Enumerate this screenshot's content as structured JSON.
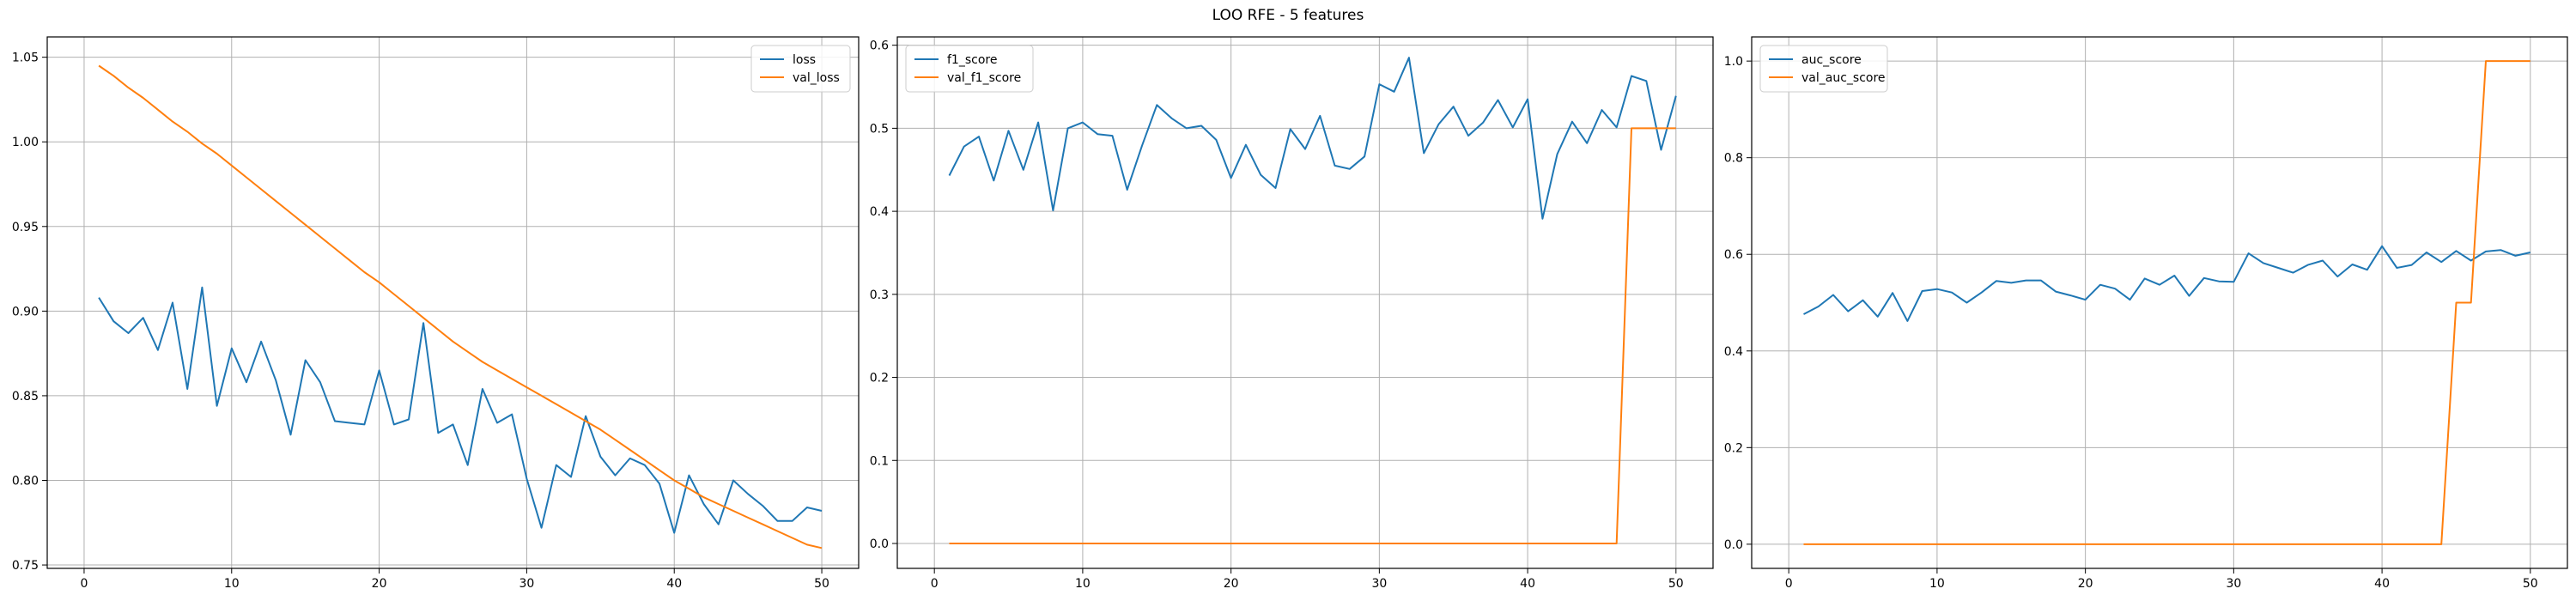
{
  "figure": {
    "title": "LOO RFE - 5 features"
  },
  "colors": {
    "blue": "#1f77b4",
    "orange": "#ff7f0e",
    "grid": "#b0b0b0",
    "axis": "#000000"
  },
  "chart_data": [
    {
      "type": "line",
      "title": "",
      "xlabel": "",
      "ylabel": "",
      "xlim": [
        -2.5,
        52.5
      ],
      "ylim": [
        0.748,
        1.062
      ],
      "xticks": [
        0,
        10,
        20,
        30,
        40,
        50
      ],
      "yticks": [
        0.75,
        0.8,
        0.85,
        0.9,
        0.95,
        1.0,
        1.05
      ],
      "ytick_labels": [
        "0.75",
        "0.80",
        "0.85",
        "0.90",
        "0.95",
        "1.00",
        "1.05"
      ],
      "grid": true,
      "legend_position": "top-right",
      "x": [
        1,
        2,
        3,
        4,
        5,
        6,
        7,
        8,
        9,
        10,
        11,
        12,
        13,
        14,
        15,
        16,
        17,
        18,
        19,
        20,
        21,
        22,
        23,
        24,
        25,
        26,
        27,
        28,
        29,
        30,
        31,
        32,
        33,
        34,
        35,
        36,
        37,
        38,
        39,
        40,
        41,
        42,
        43,
        44,
        45,
        46,
        47,
        48,
        49,
        50
      ],
      "series": [
        {
          "name": "loss",
          "color": "#1f77b4",
          "values": [
            0.908,
            0.894,
            0.887,
            0.896,
            0.877,
            0.905,
            0.854,
            0.914,
            0.844,
            0.878,
            0.858,
            0.882,
            0.859,
            0.827,
            0.871,
            0.858,
            0.835,
            0.834,
            0.833,
            0.865,
            0.833,
            0.836,
            0.893,
            0.828,
            0.833,
            0.809,
            0.854,
            0.834,
            0.839,
            0.801,
            0.772,
            0.809,
            0.802,
            0.838,
            0.814,
            0.803,
            0.813,
            0.809,
            0.798,
            0.769,
            0.803,
            0.786,
            0.774,
            0.8,
            0.792,
            0.785,
            0.776,
            0.776,
            0.784,
            0.782
          ]
        },
        {
          "name": "val_loss",
          "color": "#ff7f0e",
          "values": [
            1.045,
            1.039,
            1.032,
            1.026,
            1.019,
            1.012,
            1.006,
            0.999,
            0.993,
            0.986,
            0.979,
            0.972,
            0.965,
            0.958,
            0.951,
            0.944,
            0.937,
            0.93,
            0.923,
            0.917,
            0.91,
            0.903,
            0.896,
            0.889,
            0.882,
            0.876,
            0.87,
            0.865,
            0.86,
            0.855,
            0.85,
            0.845,
            0.84,
            0.835,
            0.83,
            0.824,
            0.818,
            0.812,
            0.806,
            0.8,
            0.795,
            0.79,
            0.786,
            0.782,
            0.778,
            0.774,
            0.77,
            0.766,
            0.762,
            0.76
          ]
        }
      ]
    },
    {
      "type": "line",
      "title": "",
      "xlabel": "",
      "ylabel": "",
      "xlim": [
        -2.5,
        52.5
      ],
      "ylim": [
        -0.03,
        0.61
      ],
      "xticks": [
        0,
        10,
        20,
        30,
        40,
        50
      ],
      "yticks": [
        0.0,
        0.1,
        0.2,
        0.3,
        0.4,
        0.5,
        0.6
      ],
      "ytick_labels": [
        "0.0",
        "0.1",
        "0.2",
        "0.3",
        "0.4",
        "0.5",
        "0.6"
      ],
      "grid": true,
      "legend_position": "top-left",
      "x": [
        1,
        2,
        3,
        4,
        5,
        6,
        7,
        8,
        9,
        10,
        11,
        12,
        13,
        14,
        15,
        16,
        17,
        18,
        19,
        20,
        21,
        22,
        23,
        24,
        25,
        26,
        27,
        28,
        29,
        30,
        31,
        32,
        33,
        34,
        35,
        36,
        37,
        38,
        39,
        40,
        41,
        42,
        43,
        44,
        45,
        46,
        47,
        48,
        49,
        50
      ],
      "series": [
        {
          "name": "f1_score",
          "color": "#1f77b4",
          "values": [
            0.443,
            0.478,
            0.49,
            0.437,
            0.497,
            0.45,
            0.507,
            0.401,
            0.5,
            0.507,
            0.493,
            0.491,
            0.426,
            0.479,
            0.528,
            0.512,
            0.5,
            0.503,
            0.486,
            0.44,
            0.48,
            0.444,
            0.428,
            0.499,
            0.475,
            0.515,
            0.455,
            0.451,
            0.466,
            0.553,
            0.544,
            0.585,
            0.47,
            0.505,
            0.526,
            0.491,
            0.507,
            0.534,
            0.501,
            0.535,
            0.391,
            0.469,
            0.508,
            0.482,
            0.522,
            0.501,
            0.563,
            0.557,
            0.474,
            0.539
          ]
        },
        {
          "name": "val_f1_score",
          "color": "#ff7f0e",
          "values": [
            0,
            0,
            0,
            0,
            0,
            0,
            0,
            0,
            0,
            0,
            0,
            0,
            0,
            0,
            0,
            0,
            0,
            0,
            0,
            0,
            0,
            0,
            0,
            0,
            0,
            0,
            0,
            0,
            0,
            0,
            0,
            0,
            0,
            0,
            0,
            0,
            0,
            0,
            0,
            0,
            0,
            0,
            0,
            0,
            0,
            0,
            0.5,
            0.5,
            0.5,
            0.5
          ]
        }
      ]
    },
    {
      "type": "line",
      "title": "",
      "xlabel": "",
      "ylabel": "",
      "xlim": [
        -2.5,
        52.5
      ],
      "ylim": [
        -0.05,
        1.05
      ],
      "xticks": [
        0,
        10,
        20,
        30,
        40,
        50
      ],
      "yticks": [
        0.0,
        0.2,
        0.4,
        0.6,
        0.8,
        1.0
      ],
      "ytick_labels": [
        "0.0",
        "0.2",
        "0.4",
        "0.6",
        "0.8",
        "1.0"
      ],
      "grid": true,
      "legend_position": "top-left",
      "x": [
        1,
        2,
        3,
        4,
        5,
        6,
        7,
        8,
        9,
        10,
        11,
        12,
        13,
        14,
        15,
        16,
        17,
        18,
        19,
        20,
        21,
        22,
        23,
        24,
        25,
        26,
        27,
        28,
        29,
        30,
        31,
        32,
        33,
        34,
        35,
        36,
        37,
        38,
        39,
        40,
        41,
        42,
        43,
        44,
        45,
        46,
        47,
        48,
        49,
        50
      ],
      "series": [
        {
          "name": "auc_score",
          "color": "#1f77b4",
          "values": [
            0.476,
            0.492,
            0.516,
            0.482,
            0.505,
            0.471,
            0.52,
            0.462,
            0.524,
            0.528,
            0.521,
            0.5,
            0.521,
            0.545,
            0.541,
            0.546,
            0.546,
            0.523,
            0.515,
            0.506,
            0.537,
            0.529,
            0.506,
            0.55,
            0.537,
            0.556,
            0.514,
            0.551,
            0.544,
            0.543,
            0.602,
            0.582,
            0.572,
            0.562,
            0.578,
            0.587,
            0.554,
            0.579,
            0.568,
            0.617,
            0.572,
            0.578,
            0.604,
            0.584,
            0.607,
            0.587,
            0.606,
            0.609,
            0.597,
            0.604
          ]
        },
        {
          "name": "val_auc_score",
          "color": "#ff7f0e",
          "values": [
            0,
            0,
            0,
            0,
            0,
            0,
            0,
            0,
            0,
            0,
            0,
            0,
            0,
            0,
            0,
            0,
            0,
            0,
            0,
            0,
            0,
            0,
            0,
            0,
            0,
            0,
            0,
            0,
            0,
            0,
            0,
            0,
            0,
            0,
            0,
            0,
            0,
            0,
            0,
            0,
            0,
            0,
            0,
            0,
            0.5,
            0.5,
            1,
            1,
            1,
            1
          ]
        }
      ]
    }
  ]
}
